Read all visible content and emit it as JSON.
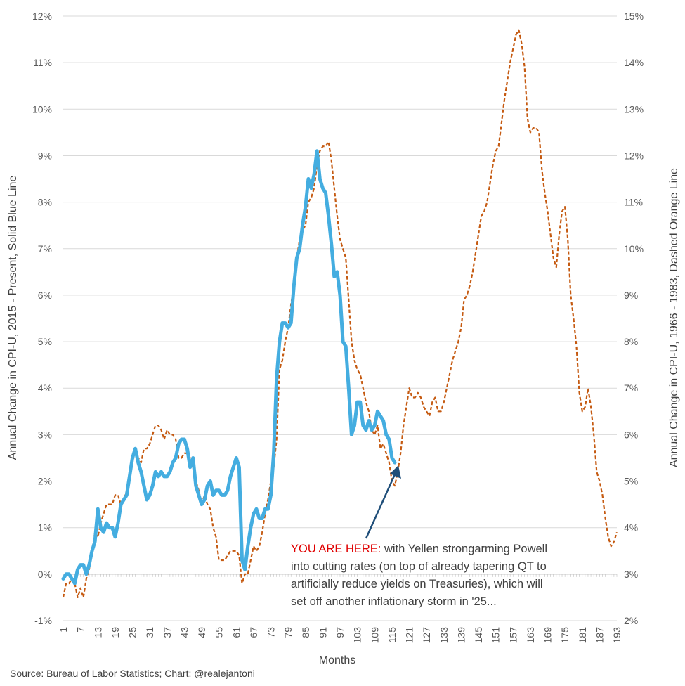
{
  "chart_data": {
    "type": "line",
    "xlabel": "Months",
    "ylabel_left": "Annual Change in CPI-U, 2015 - Present, Solid Blue Line",
    "ylabel_right": "Annual Change in CPI-U, 1966 - 1983, Dashed Orange Line",
    "x_range": [
      1,
      193
    ],
    "x_tick_labels": [
      "1",
      "7",
      "13",
      "19",
      "25",
      "31",
      "37",
      "43",
      "49",
      "55",
      "61",
      "67",
      "73",
      "79",
      "85",
      "91",
      "97",
      "103",
      "109",
      "115",
      "121",
      "127",
      "133",
      "139",
      "145",
      "151",
      "157",
      "163",
      "169",
      "175",
      "181",
      "187",
      "193"
    ],
    "left_axis": {
      "range": [
        -1,
        12
      ],
      "tick_labels": [
        "-1%",
        "0%",
        "1%",
        "2%",
        "3%",
        "4%",
        "5%",
        "6%",
        "7%",
        "8%",
        "9%",
        "10%",
        "11%",
        "12%"
      ]
    },
    "right_axis": {
      "range": [
        2,
        15
      ],
      "tick_labels": [
        "2%",
        "3%",
        "4%",
        "5%",
        "6%",
        "7%",
        "8%",
        "9%",
        "10%",
        "11%",
        "12%",
        "13%",
        "14%",
        "15%"
      ]
    },
    "series": [
      {
        "name": "Annual Change in CPI-U, 2015 - Present",
        "axis": "left",
        "style": "solid",
        "color": "#44ADE0",
        "points": [
          [
            1,
            -0.1
          ],
          [
            2,
            0.0
          ],
          [
            3,
            0.0
          ],
          [
            4,
            -0.1
          ],
          [
            5,
            -0.2
          ],
          [
            6,
            0.1
          ],
          [
            7,
            0.2
          ],
          [
            8,
            0.2
          ],
          [
            9,
            0.0
          ],
          [
            10,
            0.2
          ],
          [
            11,
            0.5
          ],
          [
            12,
            0.7
          ],
          [
            13,
            1.4
          ],
          [
            14,
            1.0
          ],
          [
            15,
            0.9
          ],
          [
            16,
            1.1
          ],
          [
            17,
            1.0
          ],
          [
            18,
            1.0
          ],
          [
            19,
            0.8
          ],
          [
            20,
            1.1
          ],
          [
            21,
            1.5
          ],
          [
            22,
            1.6
          ],
          [
            23,
            1.7
          ],
          [
            24,
            2.1
          ],
          [
            25,
            2.5
          ],
          [
            26,
            2.7
          ],
          [
            27,
            2.4
          ],
          [
            28,
            2.2
          ],
          [
            29,
            1.9
          ],
          [
            30,
            1.6
          ],
          [
            31,
            1.7
          ],
          [
            32,
            1.9
          ],
          [
            33,
            2.2
          ],
          [
            34,
            2.1
          ],
          [
            35,
            2.2
          ],
          [
            36,
            2.1
          ],
          [
            37,
            2.1
          ],
          [
            38,
            2.2
          ],
          [
            39,
            2.4
          ],
          [
            40,
            2.5
          ],
          [
            41,
            2.8
          ],
          [
            42,
            2.9
          ],
          [
            43,
            2.9
          ],
          [
            44,
            2.7
          ],
          [
            45,
            2.3
          ],
          [
            46,
            2.5
          ],
          [
            47,
            1.9
          ],
          [
            48,
            1.7
          ],
          [
            49,
            1.5
          ],
          [
            50,
            1.6
          ],
          [
            51,
            1.9
          ],
          [
            52,
            2.0
          ],
          [
            53,
            1.7
          ],
          [
            54,
            1.8
          ],
          [
            55,
            1.8
          ],
          [
            56,
            1.7
          ],
          [
            57,
            1.7
          ],
          [
            58,
            1.8
          ],
          [
            59,
            2.1
          ],
          [
            60,
            2.3
          ],
          [
            61,
            2.5
          ],
          [
            62,
            2.3
          ],
          [
            63,
            0.3
          ],
          [
            64,
            0.1
          ],
          [
            65,
            0.6
          ],
          [
            66,
            1.0
          ],
          [
            67,
            1.3
          ],
          [
            68,
            1.4
          ],
          [
            69,
            1.2
          ],
          [
            70,
            1.2
          ],
          [
            71,
            1.4
          ],
          [
            72,
            1.4
          ],
          [
            73,
            1.7
          ],
          [
            74,
            2.6
          ],
          [
            75,
            4.2
          ],
          [
            76,
            5.0
          ],
          [
            77,
            5.4
          ],
          [
            78,
            5.4
          ],
          [
            79,
            5.3
          ],
          [
            80,
            5.4
          ],
          [
            81,
            6.2
          ],
          [
            82,
            6.8
          ],
          [
            83,
            7.0
          ],
          [
            84,
            7.5
          ],
          [
            85,
            7.9
          ],
          [
            86,
            8.5
          ],
          [
            87,
            8.3
          ],
          [
            88,
            8.6
          ],
          [
            89,
            9.1
          ],
          [
            90,
            8.5
          ],
          [
            91,
            8.3
          ],
          [
            92,
            8.2
          ],
          [
            93,
            7.7
          ],
          [
            94,
            7.1
          ],
          [
            95,
            6.4
          ],
          [
            96,
            6.5
          ],
          [
            97,
            6.0
          ],
          [
            98,
            5.0
          ],
          [
            99,
            4.9
          ],
          [
            100,
            4.0
          ],
          [
            101,
            3.0
          ],
          [
            102,
            3.2
          ],
          [
            103,
            3.7
          ],
          [
            104,
            3.7
          ],
          [
            105,
            3.2
          ],
          [
            106,
            3.1
          ],
          [
            107,
            3.3
          ],
          [
            108,
            3.1
          ],
          [
            109,
            3.2
          ],
          [
            110,
            3.5
          ],
          [
            111,
            3.4
          ],
          [
            112,
            3.3
          ],
          [
            113,
            3.0
          ],
          [
            114,
            2.9
          ],
          [
            115,
            2.5
          ],
          [
            116,
            2.4
          ]
        ]
      },
      {
        "name": "Annual Change in CPI-U, 1966 - 1983",
        "axis": "right",
        "style": "dashed",
        "color": "#C55A11",
        "points": [
          [
            1,
            2.5
          ],
          [
            2,
            2.8
          ],
          [
            3,
            2.8
          ],
          [
            4,
            2.9
          ],
          [
            5,
            2.8
          ],
          [
            6,
            2.5
          ],
          [
            7,
            2.7
          ],
          [
            8,
            2.5
          ],
          [
            9,
            2.9
          ],
          [
            10,
            3.1
          ],
          [
            11,
            3.5
          ],
          [
            12,
            3.9
          ],
          [
            13,
            3.8
          ],
          [
            14,
            4.1
          ],
          [
            15,
            4.3
          ],
          [
            16,
            4.5
          ],
          [
            17,
            4.5
          ],
          [
            18,
            4.5
          ],
          [
            19,
            4.7
          ],
          [
            20,
            4.7
          ],
          [
            21,
            4.5
          ],
          [
            22,
            4.6
          ],
          [
            23,
            4.8
          ],
          [
            24,
            5.0
          ],
          [
            25,
            5.5
          ],
          [
            26,
            5.5
          ],
          [
            27,
            5.5
          ],
          [
            28,
            5.4
          ],
          [
            29,
            5.7
          ],
          [
            30,
            5.7
          ],
          [
            31,
            5.8
          ],
          [
            32,
            6.0
          ],
          [
            33,
            6.2
          ],
          [
            34,
            6.2
          ],
          [
            35,
            6.1
          ],
          [
            36,
            5.9
          ],
          [
            37,
            6.1
          ],
          [
            38,
            6.0
          ],
          [
            39,
            6.0
          ],
          [
            40,
            5.9
          ],
          [
            41,
            5.5
          ],
          [
            42,
            5.5
          ],
          [
            43,
            5.6
          ],
          [
            44,
            5.6
          ],
          [
            45,
            5.5
          ],
          [
            46,
            5.3
          ],
          [
            47,
            5.0
          ],
          [
            48,
            4.8
          ],
          [
            49,
            4.5
          ],
          [
            50,
            4.7
          ],
          [
            51,
            4.5
          ],
          [
            52,
            4.4
          ],
          [
            53,
            4.0
          ],
          [
            54,
            3.8
          ],
          [
            55,
            3.3
          ],
          [
            56,
            3.3
          ],
          [
            57,
            3.3
          ],
          [
            58,
            3.4
          ],
          [
            59,
            3.5
          ],
          [
            60,
            3.5
          ],
          [
            61,
            3.5
          ],
          [
            62,
            3.4
          ],
          [
            63,
            2.8
          ],
          [
            64,
            3.0
          ],
          [
            65,
            3.0
          ],
          [
            66,
            3.3
          ],
          [
            67,
            3.6
          ],
          [
            68,
            3.5
          ],
          [
            69,
            3.6
          ],
          [
            70,
            3.9
          ],
          [
            71,
            4.3
          ],
          [
            72,
            4.6
          ],
          [
            73,
            5.0
          ],
          [
            74,
            5.3
          ],
          [
            75,
            5.9
          ],
          [
            76,
            7.4
          ],
          [
            77,
            7.6
          ],
          [
            78,
            8.0
          ],
          [
            79,
            8.3
          ],
          [
            80,
            8.8
          ],
          [
            81,
            9.2
          ],
          [
            82,
            9.8
          ],
          [
            83,
            10.2
          ],
          [
            84,
            10.4
          ],
          [
            85,
            10.5
          ],
          [
            86,
            11.0
          ],
          [
            87,
            11.1
          ],
          [
            88,
            11.3
          ],
          [
            89,
            11.8
          ],
          [
            90,
            12.1
          ],
          [
            91,
            12.2
          ],
          [
            92,
            12.2
          ],
          [
            93,
            12.3
          ],
          [
            94,
            11.9
          ],
          [
            95,
            11.3
          ],
          [
            96,
            10.7
          ],
          [
            97,
            10.2
          ],
          [
            98,
            10.0
          ],
          [
            99,
            9.8
          ],
          [
            100,
            8.9
          ],
          [
            101,
            8.0
          ],
          [
            102,
            7.6
          ],
          [
            103,
            7.4
          ],
          [
            104,
            7.3
          ],
          [
            105,
            7.0
          ],
          [
            106,
            6.7
          ],
          [
            107,
            6.5
          ],
          [
            108,
            6.1
          ],
          [
            109,
            6.0
          ],
          [
            110,
            6.2
          ],
          [
            111,
            5.7
          ],
          [
            112,
            5.8
          ],
          [
            113,
            5.6
          ],
          [
            114,
            5.4
          ],
          [
            115,
            5.0
          ],
          [
            116,
            4.9
          ],
          [
            117,
            5.2
          ],
          [
            118,
            5.6
          ],
          [
            119,
            6.2
          ],
          [
            120,
            6.6
          ],
          [
            121,
            7.0
          ],
          [
            122,
            6.8
          ],
          [
            123,
            6.8
          ],
          [
            124,
            6.9
          ],
          [
            125,
            6.8
          ],
          [
            126,
            6.6
          ],
          [
            127,
            6.5
          ],
          [
            128,
            6.4
          ],
          [
            129,
            6.7
          ],
          [
            130,
            6.8
          ],
          [
            131,
            6.5
          ],
          [
            132,
            6.5
          ],
          [
            133,
            6.7
          ],
          [
            134,
            7.0
          ],
          [
            135,
            7.3
          ],
          [
            136,
            7.6
          ],
          [
            137,
            7.8
          ],
          [
            138,
            8.0
          ],
          [
            139,
            8.3
          ],
          [
            140,
            8.9
          ],
          [
            141,
            9.0
          ],
          [
            142,
            9.2
          ],
          [
            143,
            9.5
          ],
          [
            144,
            9.9
          ],
          [
            145,
            10.3
          ],
          [
            146,
            10.7
          ],
          [
            147,
            10.8
          ],
          [
            148,
            11.0
          ],
          [
            149,
            11.4
          ],
          [
            150,
            11.8
          ],
          [
            151,
            12.1
          ],
          [
            152,
            12.2
          ],
          [
            153,
            12.7
          ],
          [
            154,
            13.2
          ],
          [
            155,
            13.6
          ],
          [
            156,
            14.0
          ],
          [
            157,
            14.3
          ],
          [
            158,
            14.6
          ],
          [
            159,
            14.7
          ],
          [
            160,
            14.4
          ],
          [
            161,
            13.9
          ],
          [
            162,
            12.8
          ],
          [
            163,
            12.5
          ],
          [
            164,
            12.6
          ],
          [
            165,
            12.6
          ],
          [
            166,
            12.5
          ],
          [
            167,
            11.7
          ],
          [
            168,
            11.2
          ],
          [
            169,
            10.8
          ],
          [
            170,
            10.3
          ],
          [
            171,
            9.8
          ],
          [
            172,
            9.6
          ],
          [
            173,
            10.3
          ],
          [
            174,
            10.8
          ],
          [
            175,
            10.9
          ],
          [
            176,
            10.2
          ],
          [
            177,
            9.0
          ],
          [
            178,
            8.5
          ],
          [
            179,
            7.9
          ],
          [
            180,
            6.9
          ],
          [
            181,
            6.5
          ],
          [
            182,
            6.6
          ],
          [
            183,
            7.0
          ],
          [
            184,
            6.6
          ],
          [
            185,
            6.0
          ],
          [
            186,
            5.2
          ],
          [
            187,
            5.0
          ],
          [
            188,
            4.7
          ],
          [
            189,
            4.2
          ],
          [
            190,
            3.8
          ],
          [
            191,
            3.6
          ],
          [
            192,
            3.7
          ],
          [
            193,
            3.9
          ]
        ]
      }
    ],
    "annotation": {
      "highlight": "YOU ARE HERE:",
      "lines": [
        " with Yellen strongarming Powell",
        "into cutting rates (on top of already tapering QT to",
        "artificially reduce yields on Treasuries), which will",
        "set off another inflationary storm in '25..."
      ],
      "arrow_target": {
        "x": 116,
        "y": 2.4,
        "axis": "left"
      }
    },
    "source": "Source: Bureau of Labor Statistics; Chart: @realejantoni"
  }
}
